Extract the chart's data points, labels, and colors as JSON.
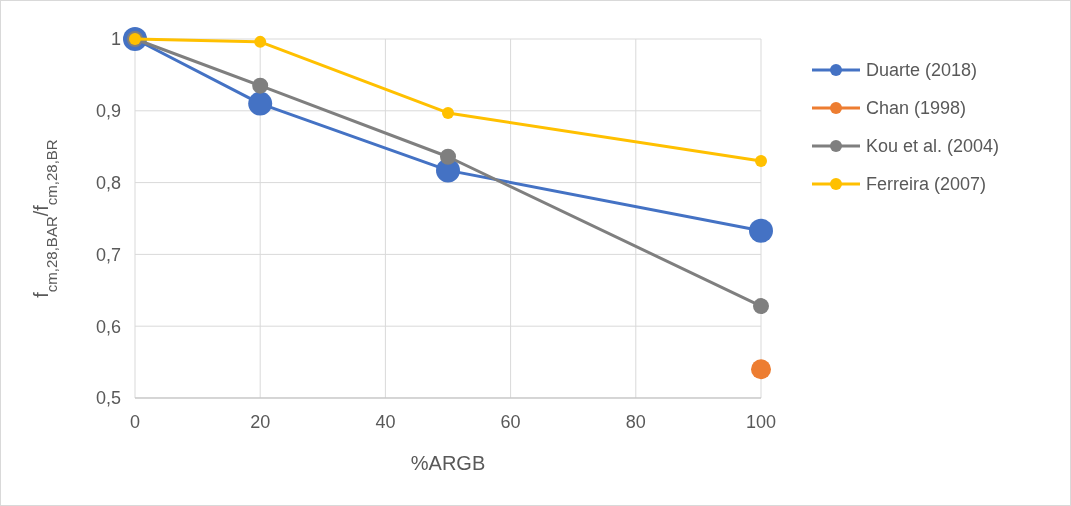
{
  "chart_data": {
    "type": "line",
    "xlabel": "%ARGB",
    "ylabel": "f$_{cm,28,BAR}$/f$_{cm,28,BR}$",
    "x": [
      0,
      20,
      50,
      100
    ],
    "series": [
      {
        "name": "Duarte (2018)",
        "color": "#4472c4",
        "values": [
          1,
          0.91,
          0.817,
          0.733
        ]
      },
      {
        "name": "Chan (1998)",
        "color": "#ed7d31",
        "values": [
          null,
          null,
          null,
          0.54
        ]
      },
      {
        "name": "Kou et al. (2004)",
        "color": "#7f7f7f",
        "values": [
          1,
          0.935,
          0.836,
          0.628
        ]
      },
      {
        "name": "Ferreira (2007)",
        "color": "#ffc000",
        "values": [
          1,
          0.996,
          0.897,
          0.83
        ]
      }
    ],
    "xlim": [
      0,
      100
    ],
    "xticks": [
      0,
      20,
      40,
      60,
      80,
      100
    ],
    "ylim": [
      0.5,
      1
    ],
    "yticks": [
      {
        "value": 0.5,
        "label": "0,5"
      },
      {
        "value": 0.6,
        "label": "0,6"
      },
      {
        "value": 0.7,
        "label": "0,7"
      },
      {
        "value": 0.8,
        "label": "0,8"
      },
      {
        "value": 0.9,
        "label": "0,9"
      },
      {
        "value": 1,
        "label": "1"
      }
    ],
    "grid": true,
    "legend": "right",
    "marker": "circle",
    "line_style": "solid"
  }
}
